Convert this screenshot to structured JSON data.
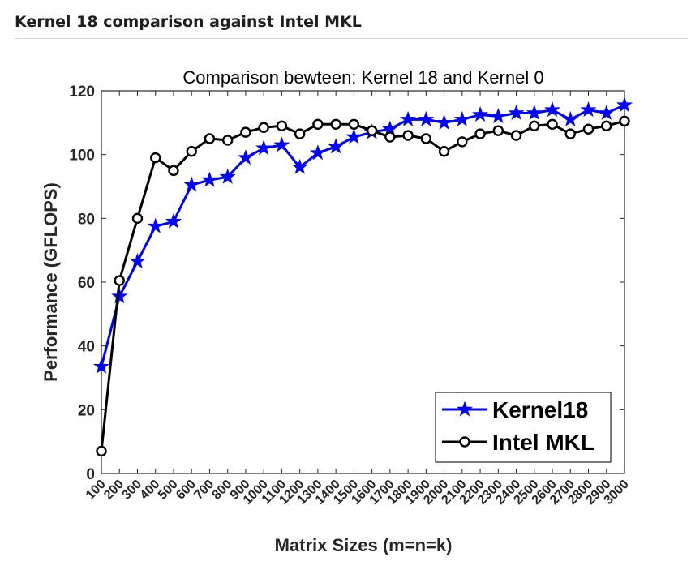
{
  "page": {
    "heading": "Kernel 18 comparison against Intel MKL"
  },
  "chart_data": {
    "type": "line",
    "title": "Comparison bewteen: Kernel 18 and Kernel 0",
    "xlabel": "Matrix Sizes (m=n=k)",
    "ylabel": "Performance (GFLOPS)",
    "ylim": [
      0,
      120
    ],
    "yticks": [
      0,
      20,
      40,
      60,
      80,
      100,
      120
    ],
    "x": [
      100,
      200,
      300,
      400,
      500,
      600,
      700,
      800,
      900,
      1000,
      1100,
      1200,
      1300,
      1400,
      1500,
      1600,
      1700,
      1800,
      1900,
      2000,
      2100,
      2200,
      2300,
      2400,
      2500,
      2600,
      2700,
      2800,
      2900,
      3000
    ],
    "xlim": [
      100,
      3000
    ],
    "grid": false,
    "legend_position": "bottom-right",
    "series": [
      {
        "name": "Kernel18",
        "color": "#0000ff",
        "marker": "star",
        "values": [
          33.5,
          55.5,
          66.5,
          77.5,
          79,
          90.5,
          92,
          93,
          99,
          102,
          103,
          96,
          100.5,
          102.5,
          105.5,
          107,
          108,
          111,
          111,
          110,
          111,
          112.5,
          112,
          113,
          113,
          114,
          111,
          114,
          113,
          115.5
        ]
      },
      {
        "name": "Intel MKL",
        "color": "#000000",
        "marker": "circle",
        "values": [
          7,
          60.5,
          80,
          99,
          95,
          101,
          105,
          104.5,
          107,
          108.5,
          109,
          106.5,
          109.5,
          109.5,
          109.5,
          107.5,
          105.5,
          106,
          105,
          101,
          104,
          106.5,
          107.5,
          106,
          109,
          109.5,
          106.5,
          108,
          109,
          110.5
        ]
      }
    ]
  }
}
